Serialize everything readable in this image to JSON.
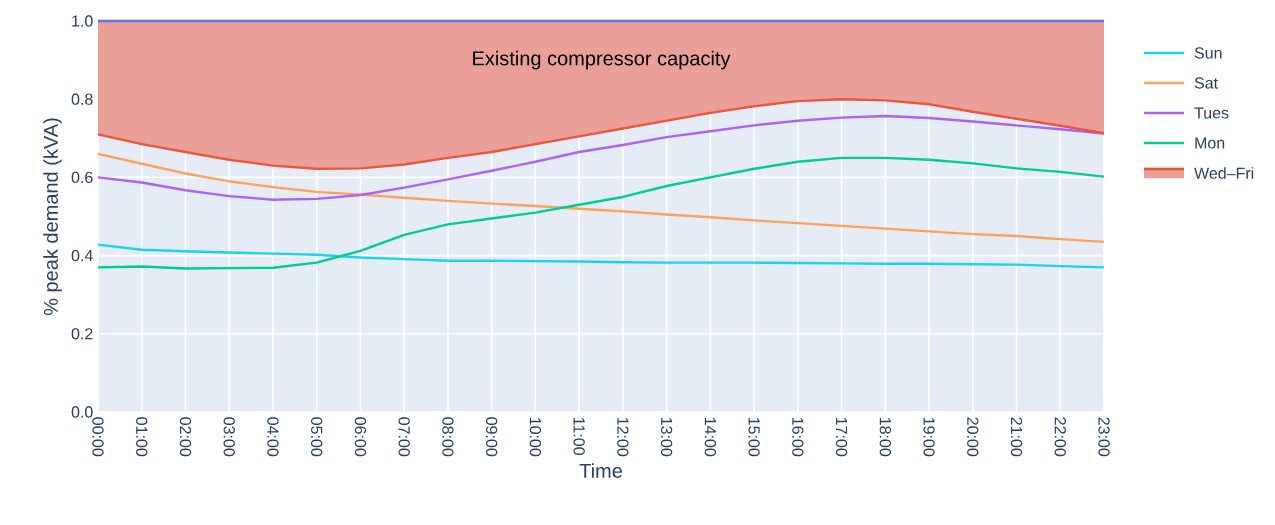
{
  "chart_data": {
    "type": "line",
    "xlabel": "Time",
    "ylabel": "% peak demand (kVA)",
    "annotations": [
      "Existing compressor capacity"
    ],
    "categories": [
      "00:00",
      "01:00",
      "02:00",
      "03:00",
      "04:00",
      "05:00",
      "06:00",
      "07:00",
      "08:00",
      "09:00",
      "10:00",
      "11:00",
      "12:00",
      "13:00",
      "14:00",
      "15:00",
      "16:00",
      "17:00",
      "18:00",
      "19:00",
      "20:00",
      "21:00",
      "22:00",
      "23:00"
    ],
    "series": [
      {
        "color": "#636efa",
        "values": [
          1,
          1,
          1,
          1,
          1,
          1,
          1,
          1,
          1,
          1,
          1,
          1,
          1,
          1,
          1,
          1,
          1,
          1,
          1,
          1,
          1,
          1,
          1,
          1
        ]
      },
      {
        "name": "Sun",
        "color": "#19d3f3",
        "values": [
          0.428,
          0.415,
          0.411,
          0.408,
          0.405,
          0.402,
          0.395,
          0.391,
          0.387,
          0.387,
          0.386,
          0.385,
          0.383,
          0.382,
          0.382,
          0.382,
          0.381,
          0.38,
          0.379,
          0.379,
          0.378,
          0.377,
          0.373,
          0.37
        ]
      },
      {
        "name": "Sat",
        "color": "#ffa15a",
        "values": [
          0.66,
          0.635,
          0.61,
          0.59,
          0.575,
          0.563,
          0.556,
          0.548,
          0.54,
          0.533,
          0.527,
          0.52,
          0.513,
          0.505,
          0.498,
          0.49,
          0.483,
          0.476,
          0.469,
          0.462,
          0.455,
          0.45,
          0.442,
          0.435
        ]
      },
      {
        "name": "Tues",
        "color": "#ab63fa",
        "values": [
          0.6,
          0.587,
          0.567,
          0.552,
          0.543,
          0.545,
          0.555,
          0.574,
          0.595,
          0.617,
          0.64,
          0.665,
          0.683,
          0.703,
          0.718,
          0.733,
          0.745,
          0.753,
          0.757,
          0.752,
          0.743,
          0.733,
          0.723,
          0.712
        ]
      },
      {
        "name": "Mon",
        "color": "#00cc96",
        "values": [
          0.37,
          0.372,
          0.367,
          0.368,
          0.369,
          0.382,
          0.412,
          0.453,
          0.48,
          0.495,
          0.51,
          0.53,
          0.55,
          0.578,
          0.6,
          0.622,
          0.64,
          0.65,
          0.65,
          0.645,
          0.636,
          0.623,
          0.614,
          0.602
        ]
      },
      {
        "name": "Wed–Fri",
        "color": "#ef553b",
        "values": [
          0.71,
          0.685,
          0.665,
          0.645,
          0.63,
          0.622,
          0.623,
          0.633,
          0.65,
          0.665,
          0.685,
          0.705,
          0.725,
          0.745,
          0.765,
          0.782,
          0.795,
          0.8,
          0.797,
          0.787,
          0.768,
          0.75,
          0.732,
          0.713
        ],
        "lower": [
          0.71,
          0.685,
          0.665,
          0.645,
          0.63,
          0.622,
          0.623,
          0.633,
          0.65,
          0.665,
          0.685,
          0.705,
          0.725,
          0.745,
          0.765,
          0.782,
          0.795,
          0.8,
          0.797,
          0.787,
          0.768,
          0.75,
          0.732,
          0.713
        ],
        "upper": [
          1,
          1,
          1,
          1,
          1,
          1,
          1,
          1,
          1,
          1,
          1,
          1,
          1,
          1,
          1,
          1,
          1,
          1,
          1,
          1,
          1,
          1,
          1,
          1
        ]
      }
    ],
    "ylim": [
      0,
      1
    ],
    "yticks": [
      {
        "value": 0,
        "label": "0.0"
      },
      {
        "value": 0.2,
        "label": "0.2"
      },
      {
        "value": 0.4,
        "label": "0.4"
      },
      {
        "value": 0.6,
        "label": "0.6"
      },
      {
        "value": 0.8,
        "label": "0.8"
      },
      {
        "value": 1,
        "label": "1.0"
      }
    ],
    "grid": true,
    "legend": "right",
    "marker": "none",
    "line_style": "solid"
  }
}
